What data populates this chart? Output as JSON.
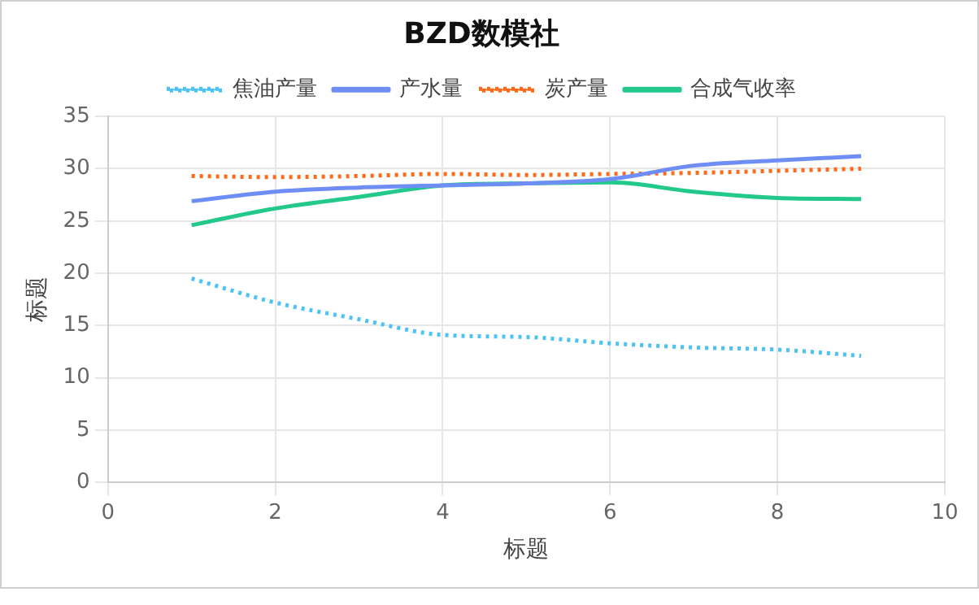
{
  "chart_data": {
    "type": "line",
    "title": "BZD数模社",
    "xlabel": "标题",
    "ylabel": "标题",
    "x": [
      1,
      2,
      3,
      4,
      5,
      6,
      7,
      8,
      9
    ],
    "series": [
      {
        "name": "焦油产量",
        "color": "#4cc3f5",
        "line_style": "dotted",
        "values": [
          19.5,
          17.2,
          15.6,
          14.1,
          13.9,
          13.3,
          12.9,
          12.7,
          12.1
        ]
      },
      {
        "name": "产水量",
        "color": "#6f8ef5",
        "line_style": "solid",
        "values": [
          26.9,
          27.8,
          28.2,
          28.4,
          28.6,
          29.0,
          30.3,
          30.8,
          31.2
        ]
      },
      {
        "name": "炭产量",
        "color": "#ff6a1a",
        "line_style": "dotted",
        "values": [
          29.3,
          29.2,
          29.3,
          29.5,
          29.4,
          29.5,
          29.6,
          29.8,
          30.0
        ]
      },
      {
        "name": "合成气收率",
        "color": "#22c98a",
        "line_style": "solid",
        "values": [
          24.6,
          26.2,
          27.3,
          28.4,
          28.6,
          28.7,
          27.8,
          27.2,
          27.1
        ]
      }
    ],
    "xlim": [
      0,
      10
    ],
    "xticks": [
      0,
      2,
      4,
      6,
      8,
      10
    ],
    "ylim": [
      0,
      35
    ],
    "yticks": [
      0,
      5,
      10,
      15,
      20,
      25,
      30,
      35
    ],
    "grid": true,
    "legend": "top",
    "marker": "none"
  }
}
